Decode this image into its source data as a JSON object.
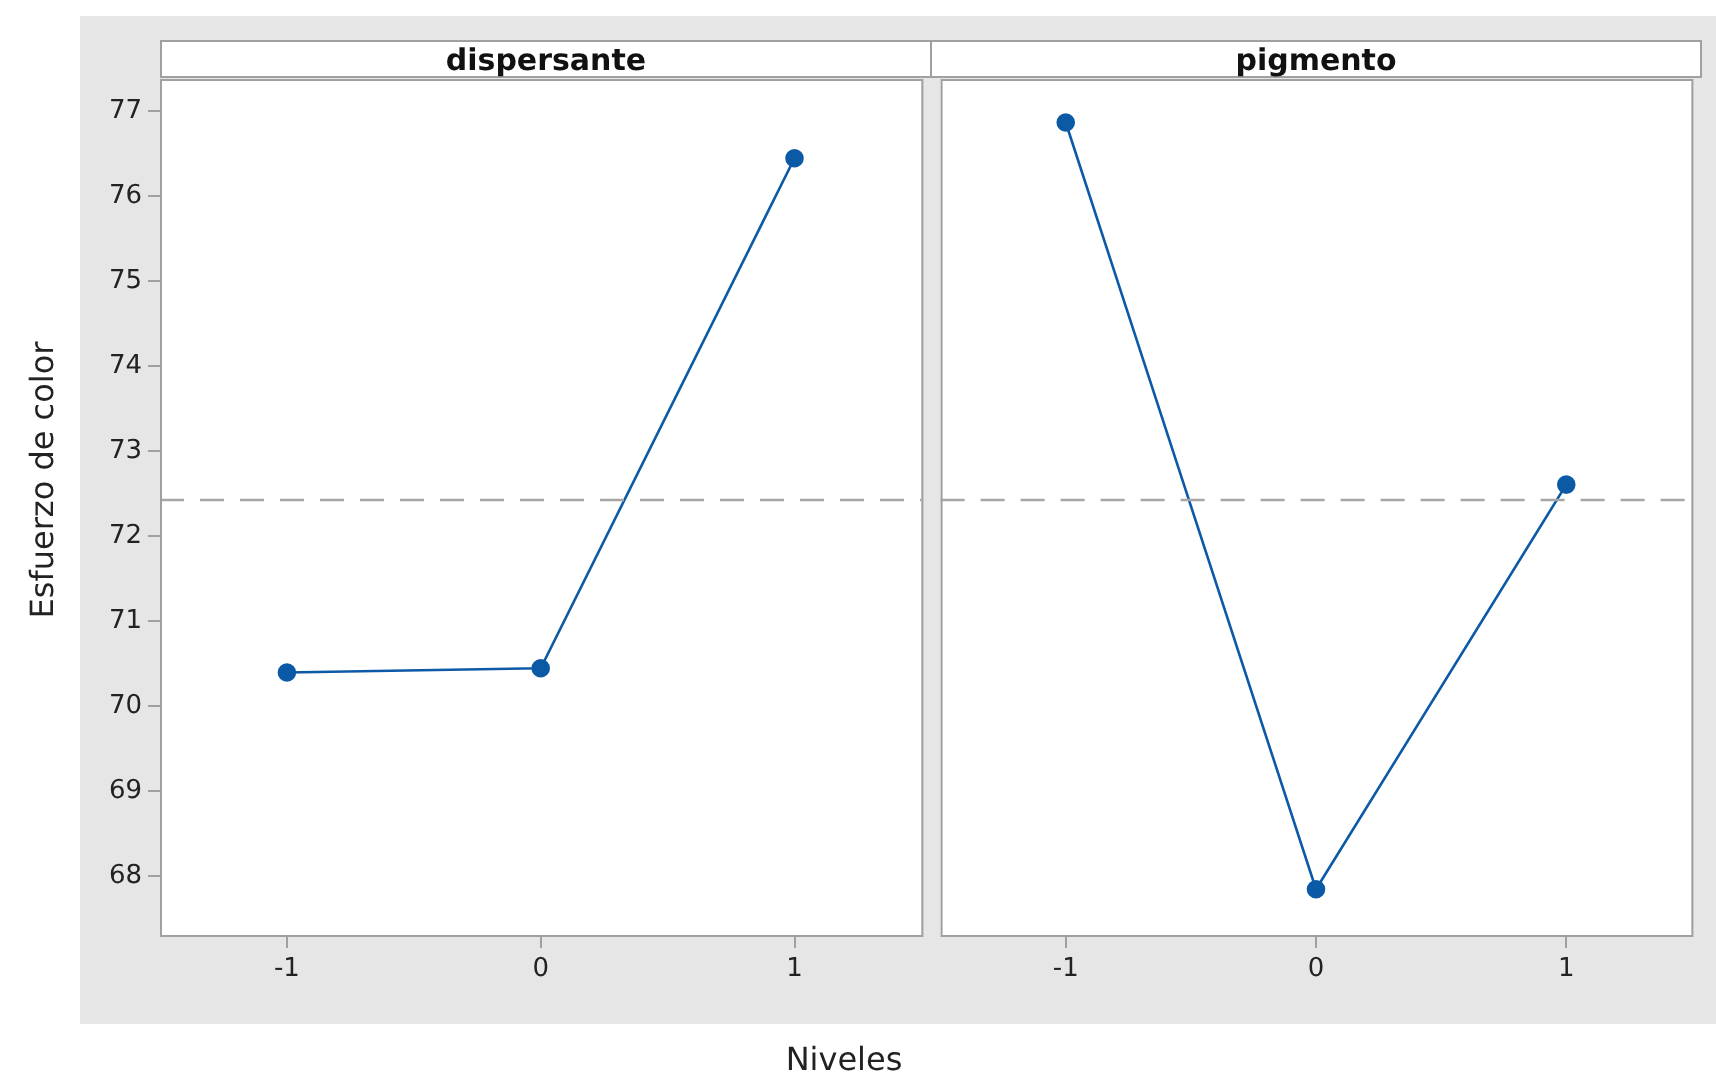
{
  "chart_data": [
    {
      "type": "line",
      "title": "dispersante",
      "ylabel": "Esfuerzo de color",
      "xlabel": "Niveles",
      "categories": [
        "-1",
        "0",
        "1"
      ],
      "series": [
        {
          "color": "#0c5aa6",
          "values": [
            70.4,
            70.45,
            76.45
          ]
        }
      ],
      "ylim": [
        67.3,
        77.37
      ],
      "yticks": [
        68,
        69,
        70,
        71,
        72,
        73,
        74,
        75,
        76,
        77
      ],
      "grid": false,
      "legend": false,
      "marker": "circle",
      "line_style": "solid",
      "ref_lines": [
        {
          "axis": "y",
          "value": 72.43,
          "color": "#a6a6a6",
          "line_style": "dashed"
        }
      ]
    },
    {
      "type": "line",
      "title": "pigmento",
      "categories": [
        "-1",
        "0",
        "1"
      ],
      "series": [
        {
          "color": "#0c5aa6",
          "values": [
            76.87,
            67.85,
            72.61
          ]
        }
      ],
      "ylim": [
        67.3,
        77.37
      ],
      "yticks": [
        68,
        69,
        70,
        71,
        72,
        73,
        74,
        75,
        76,
        77
      ],
      "grid": false,
      "legend": false,
      "marker": "circle",
      "line_style": "solid",
      "tick_labels": "x",
      "ref_lines": [
        {
          "axis": "y",
          "value": 72.43,
          "color": "#a6a6a6",
          "line_style": "dashed"
        }
      ]
    }
  ]
}
